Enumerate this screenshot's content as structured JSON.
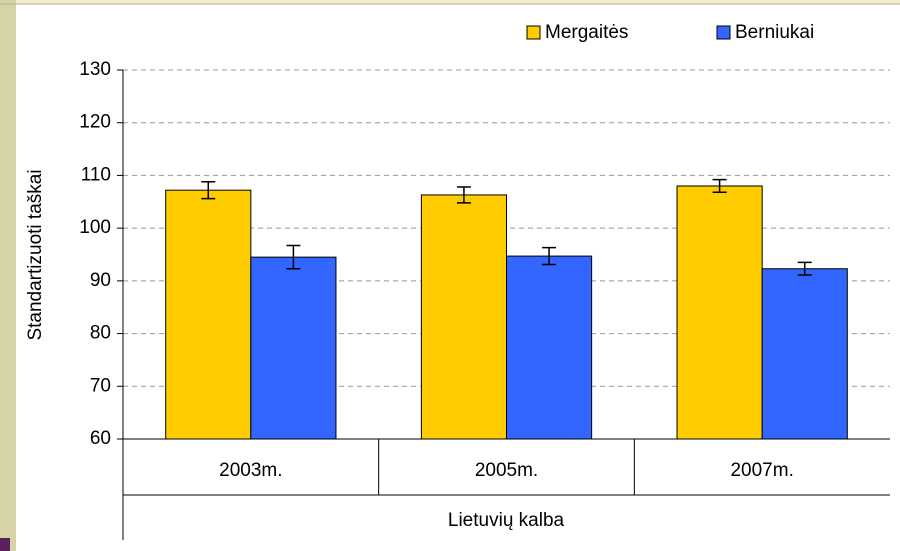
{
  "chart_data": {
    "type": "bar",
    "y_label": "Standartizuoti taškai",
    "x_label": "Lietuvių kalba",
    "categories": [
      "2003m.",
      "2005m.",
      "2007m."
    ],
    "series": [
      {
        "name": "Mergaitės",
        "color": "#ffcc00",
        "values": [
          107.2,
          106.3,
          108
        ],
        "errors": [
          1.6,
          1.5,
          1.2
        ]
      },
      {
        "name": "Berniukai",
        "color": "#3366ff",
        "values": [
          94.5,
          94.7,
          92.3
        ],
        "errors": [
          2.2,
          1.6,
          1.2
        ]
      }
    ],
    "ylim": [
      60,
      130
    ],
    "yticks": [
      60,
      70,
      80,
      90,
      100,
      110,
      120,
      130
    ],
    "grid": true,
    "legend": "top-right"
  }
}
